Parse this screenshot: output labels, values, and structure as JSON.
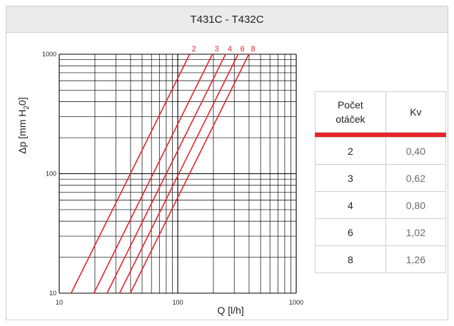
{
  "header": {
    "title": "T431C - T432C"
  },
  "table": {
    "headers": [
      "Počet otáček",
      "Kv"
    ],
    "rows": [
      {
        "speed": "2",
        "kv": "0,40"
      },
      {
        "speed": "3",
        "kv": "0,62"
      },
      {
        "speed": "4",
        "kv": "0,80"
      },
      {
        "speed": "6",
        "kv": "1,02"
      },
      {
        "speed": "8",
        "kv": "1,26"
      }
    ]
  },
  "colors": {
    "curve": "#e8242b",
    "grid": "#000000",
    "header_bg": "#ebebeb",
    "table_border": "#cfcfcf"
  },
  "chart_data": {
    "type": "line",
    "title": "T431C - T432C",
    "xlabel": "Q [l/h]",
    "ylabel": "Δp [mm H2O]",
    "ylabel_parts": {
      "main": "Δp [mm H",
      "sub": "2",
      "tail": "0]"
    },
    "xscale": "log",
    "yscale": "log",
    "xlim": [
      10,
      1000
    ],
    "ylim": [
      10,
      1000
    ],
    "x_ticks": [
      "10",
      "100",
      "1000"
    ],
    "y_ticks": [
      "10",
      "100",
      "1000"
    ],
    "grid": true,
    "series": [
      {
        "name": "2",
        "kv": 0.4,
        "points": [
          [
            12.6,
            10
          ],
          [
            126,
            1000
          ]
        ]
      },
      {
        "name": "3",
        "kv": 0.62,
        "points": [
          [
            19.6,
            10
          ],
          [
            196,
            1000
          ]
        ]
      },
      {
        "name": "4",
        "kv": 0.8,
        "points": [
          [
            25.3,
            10
          ],
          [
            253,
            1000
          ]
        ]
      },
      {
        "name": "6",
        "kv": 1.02,
        "points": [
          [
            32.3,
            10
          ],
          [
            323,
            1000
          ]
        ]
      },
      {
        "name": "8",
        "kv": 1.26,
        "points": [
          [
            39.8,
            10
          ],
          [
            398,
            1000
          ]
        ]
      }
    ]
  }
}
